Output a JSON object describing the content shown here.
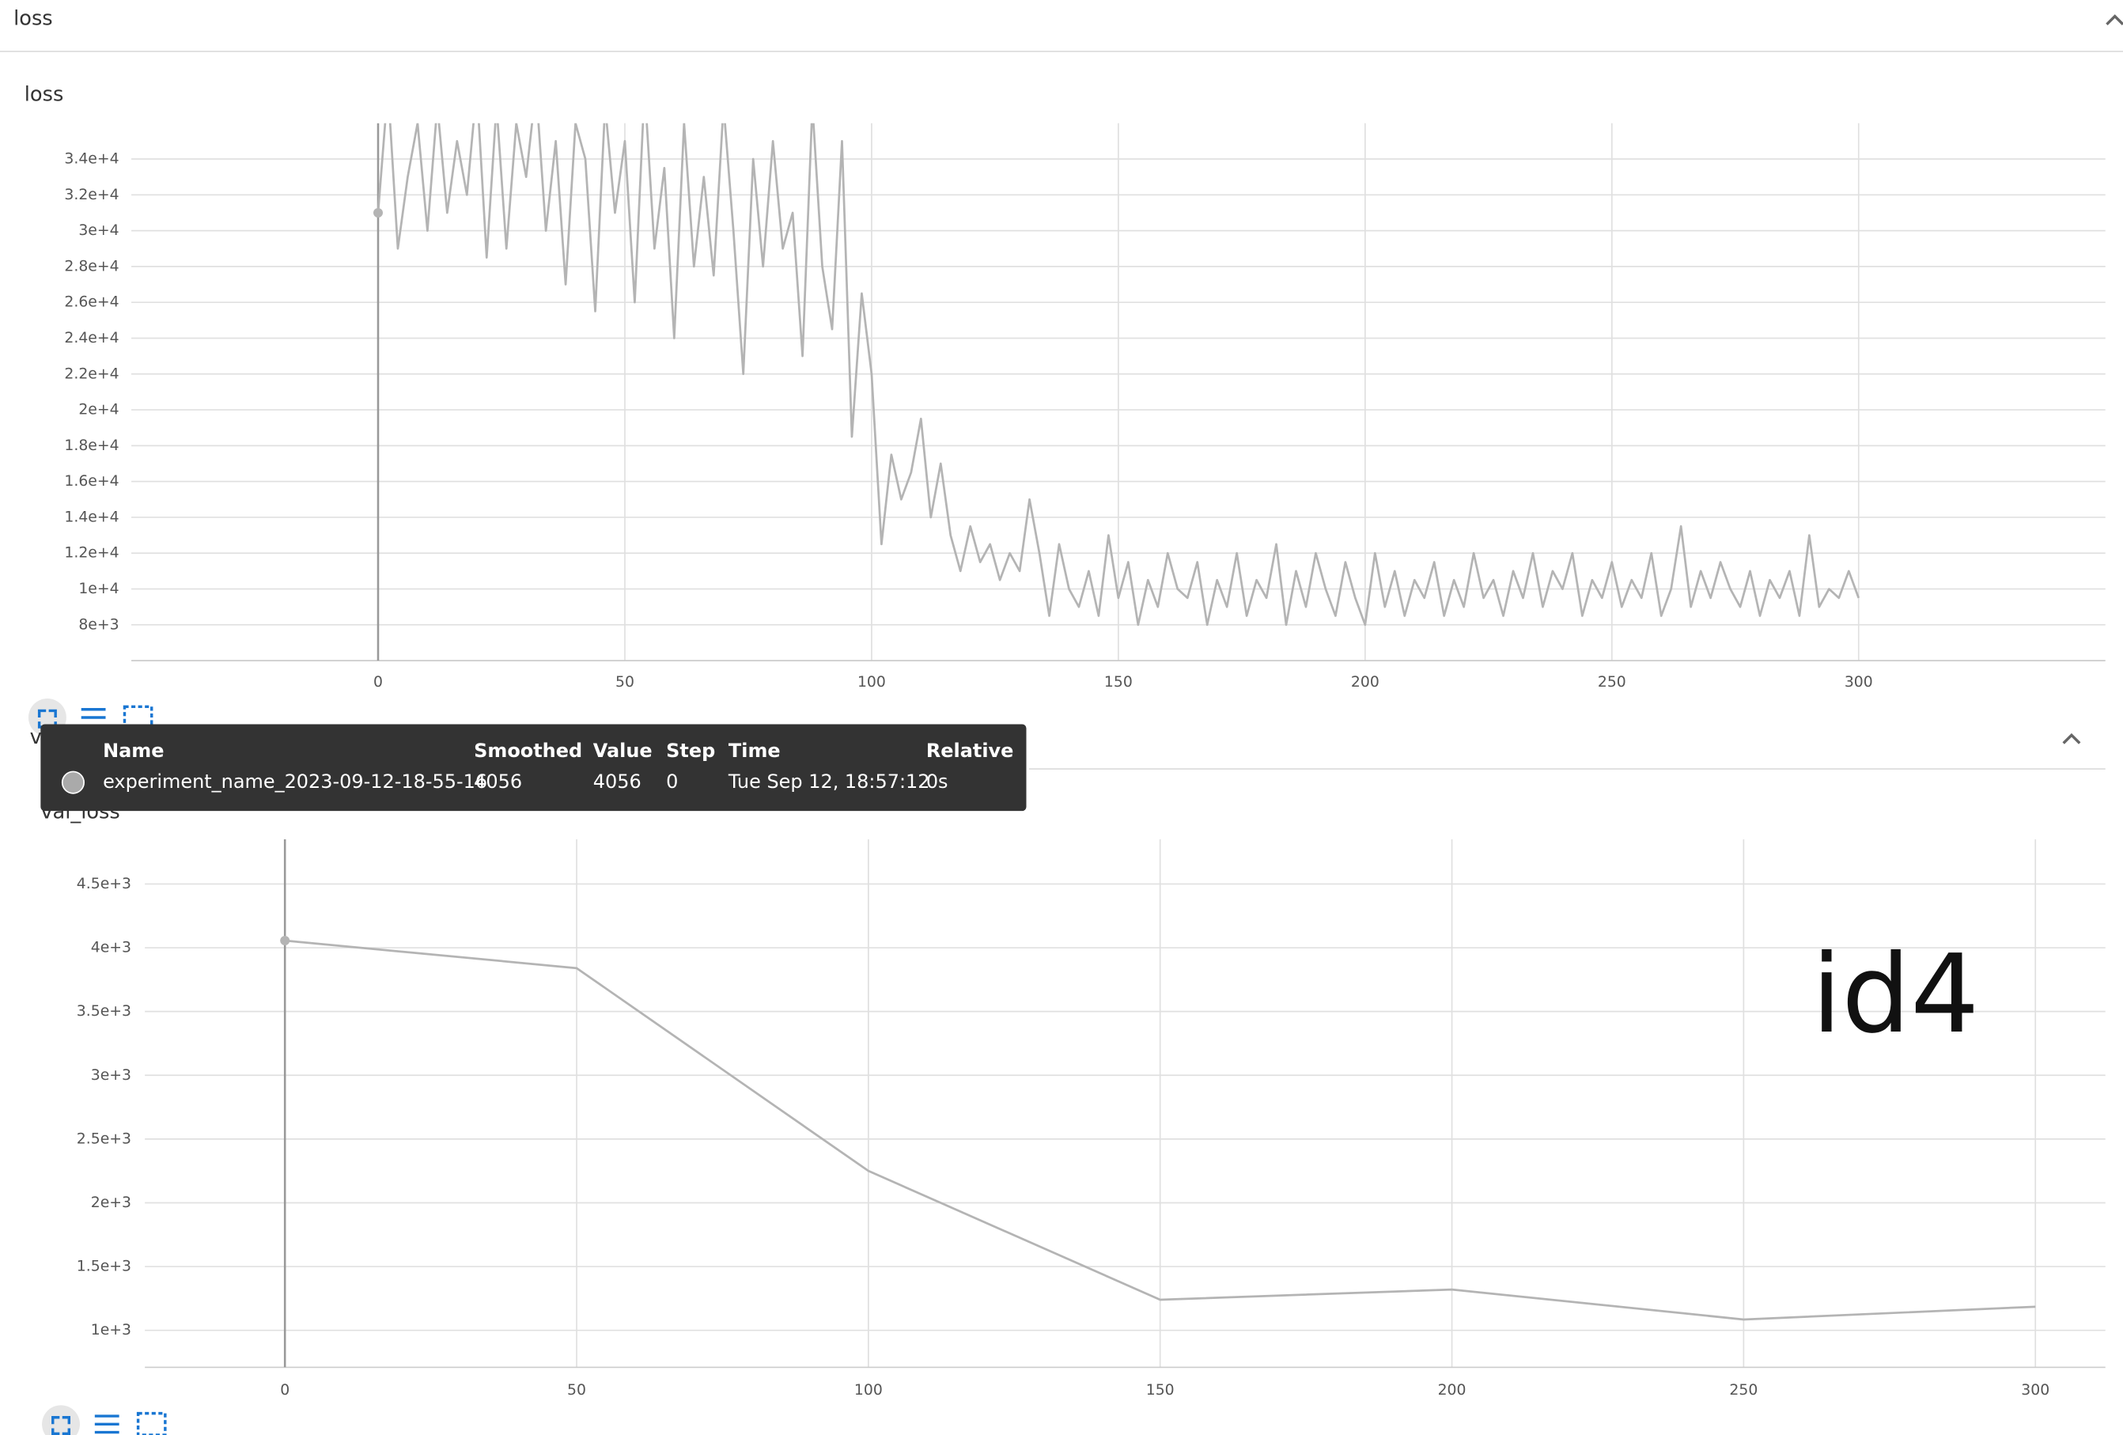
{
  "sections": [
    "loss",
    "val_loss"
  ],
  "annotation": "id4",
  "tooltip": {
    "headers": [
      "Name",
      "Smoothed",
      "Value",
      "Step",
      "Time",
      "Relative"
    ],
    "row": [
      "experiment_name_2023-09-12-18-55-16",
      4056,
      4056,
      0,
      "Tue Sep 12, 18:57:12",
      "0s"
    ]
  },
  "chart_data": [
    {
      "type": "line",
      "title": "loss",
      "color": "#b4b4b4",
      "grid": true,
      "x": [
        0,
        2,
        4,
        6,
        8,
        10,
        12,
        14,
        16,
        18,
        20,
        22,
        24,
        26,
        28,
        30,
        32,
        34,
        36,
        38,
        40,
        42,
        44,
        46,
        48,
        50,
        52,
        54,
        56,
        58,
        60,
        62,
        64,
        66,
        68,
        70,
        72,
        74,
        76,
        78,
        80,
        82,
        84,
        86,
        88,
        90,
        92,
        94,
        96,
        98,
        100,
        102,
        104,
        106,
        108,
        110,
        112,
        114,
        116,
        118,
        120,
        122,
        124,
        126,
        128,
        130,
        132,
        134,
        136,
        138,
        140,
        142,
        144,
        146,
        148,
        150,
        152,
        154,
        156,
        158,
        160,
        162,
        164,
        166,
        168,
        170,
        172,
        174,
        176,
        178,
        180,
        182,
        184,
        186,
        188,
        190,
        192,
        194,
        196,
        198,
        200,
        202,
        204,
        206,
        208,
        210,
        212,
        214,
        216,
        218,
        220,
        222,
        224,
        226,
        228,
        230,
        232,
        234,
        236,
        238,
        240,
        242,
        244,
        246,
        248,
        250,
        252,
        254,
        256,
        258,
        260,
        262,
        264,
        266,
        268,
        270,
        272,
        274,
        276,
        278,
        280,
        282,
        284,
        286,
        288,
        290,
        292,
        294,
        296,
        298,
        300
      ],
      "values": [
        31000,
        38000,
        29000,
        33000,
        36000,
        30000,
        37000,
        31000,
        35000,
        32000,
        38000,
        28500,
        37000,
        29000,
        36000,
        33000,
        38000,
        30000,
        35000,
        27000,
        36000,
        34000,
        25500,
        37000,
        31000,
        35000,
        26000,
        38000,
        29000,
        33500,
        24000,
        36000,
        28000,
        33000,
        27500,
        37000,
        30000,
        22000,
        34000,
        28000,
        35000,
        29000,
        31000,
        23000,
        37000,
        28000,
        24500,
        35000,
        18500,
        26500,
        22000,
        12500,
        17500,
        15000,
        16500,
        19500,
        14000,
        17000,
        13000,
        11000,
        13500,
        11500,
        12500,
        10500,
        12000,
        11000,
        15000,
        12000,
        8500,
        12500,
        10000,
        9000,
        11000,
        8500,
        13000,
        9500,
        11500,
        8000,
        10500,
        9000,
        12000,
        10000,
        9500,
        11500,
        8000,
        10500,
        9000,
        12000,
        8500,
        10500,
        9500,
        12500,
        8000,
        11000,
        9000,
        12000,
        10000,
        8500,
        11500,
        9500,
        8000,
        12000,
        9000,
        11000,
        8500,
        10500,
        9500,
        11500,
        8500,
        10500,
        9000,
        12000,
        9500,
        10500,
        8500,
        11000,
        9500,
        12000,
        9000,
        11000,
        10000,
        12000,
        8500,
        10500,
        9500,
        11500,
        9000,
        10500,
        9500,
        12000,
        8500,
        10000,
        13500,
        9000,
        11000,
        9500,
        11500,
        10000,
        9000,
        11000,
        8500,
        10500,
        9500,
        11000,
        8500,
        13000,
        9000,
        10000,
        9500,
        11000,
        9500
      ],
      "xlim": [
        -50,
        350
      ],
      "ylim": [
        6000,
        36000
      ],
      "xticks": [
        0,
        50,
        100,
        150,
        200,
        250,
        300
      ],
      "yticks": [
        {
          "value": 8000,
          "label": "8e+3"
        },
        {
          "value": 10000,
          "label": "1e+4"
        },
        {
          "value": 12000,
          "label": "1.2e+4"
        },
        {
          "value": 14000,
          "label": "1.4e+4"
        },
        {
          "value": 16000,
          "label": "1.6e+4"
        },
        {
          "value": 18000,
          "label": "1.8e+4"
        },
        {
          "value": 20000,
          "label": "2e+4"
        },
        {
          "value": 22000,
          "label": "2.2e+4"
        },
        {
          "value": 24000,
          "label": "2.4e+4"
        },
        {
          "value": 26000,
          "label": "2.6e+4"
        },
        {
          "value": 28000,
          "label": "2.8e+4"
        },
        {
          "value": 30000,
          "label": "3e+4"
        },
        {
          "value": 32000,
          "label": "3.2e+4"
        },
        {
          "value": 34000,
          "label": "3.4e+4"
        }
      ]
    },
    {
      "type": "line",
      "title": "val_loss",
      "color": "#b4b4b4",
      "grid": true,
      "x": [
        0,
        50,
        100,
        150,
        200,
        250,
        300
      ],
      "values": [
        4056,
        3840,
        2250,
        1240,
        1320,
        1085,
        1185
      ],
      "xlim": [
        -24,
        312
      ],
      "ylim": [
        710,
        4850
      ],
      "xticks": [
        0,
        50,
        100,
        150,
        200,
        250,
        300
      ],
      "yticks": [
        {
          "value": 1000,
          "label": "1e+3"
        },
        {
          "value": 1500,
          "label": "1.5e+3"
        },
        {
          "value": 2000,
          "label": "2e+3"
        },
        {
          "value": 2500,
          "label": "2.5e+3"
        },
        {
          "value": 3000,
          "label": "3e+3"
        },
        {
          "value": 3500,
          "label": "3.5e+3"
        },
        {
          "value": 4000,
          "label": "4e+3"
        },
        {
          "value": 4500,
          "label": "4.5e+3"
        }
      ]
    }
  ]
}
